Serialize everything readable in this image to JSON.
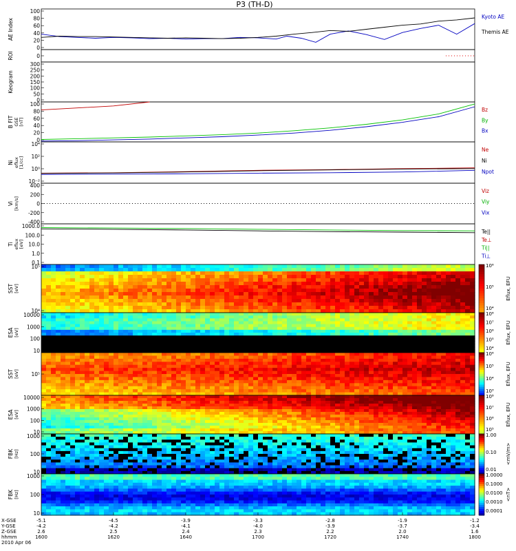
{
  "title": "P3 (TH-D)",
  "chart_data": {
    "type": "multi-panel",
    "title": "P3 (TH-D)",
    "xaxis": {
      "tick_columns": [
        "1600",
        "1620",
        "1640",
        "1700",
        "1720",
        "1740",
        "1800"
      ],
      "rows": [
        {
          "label": "X-GSE",
          "ticks": [
            "-5.1",
            "-4.5",
            "-3.9",
            "-3.3",
            "-2.8",
            "-1.9",
            "-1.2"
          ]
        },
        {
          "label": "Y-GSE",
          "ticks": [
            "-4.2",
            "-4.2",
            "-4.1",
            "-4.0",
            "-3.9",
            "-3.7",
            "-3.4"
          ]
        },
        {
          "label": "Z-GSE",
          "ticks": [
            "2.6",
            "2.5",
            "2.4",
            "2.3",
            "2.2",
            "2.0",
            "1.6"
          ]
        },
        {
          "label": "hhmm",
          "ticks": [
            "1600",
            "1620",
            "1640",
            "1700",
            "1720",
            "1740",
            "1800"
          ]
        }
      ],
      "date": "2010 Apr 06"
    },
    "panels": [
      {
        "id": "ae",
        "type": "line",
        "ylabel": "AE Index",
        "ylim": [
          0,
          100
        ],
        "yticks": [
          "0",
          "20",
          "40",
          "60",
          "80",
          "100"
        ],
        "legend": [
          {
            "name": "Kyoto AE",
            "color": "#0000c0"
          },
          {
            "name": "Themis AE",
            "color": "#000000"
          }
        ],
        "series": [
          {
            "name": "Kyoto AE",
            "color": "#0000c0",
            "x": [
              1600,
              1605,
              1610,
              1615,
              1620,
              1625,
              1630,
              1635,
              1640,
              1645,
              1650,
              1655,
              1700,
              1705,
              1708,
              1712,
              1716,
              1720,
              1725,
              1730,
              1735,
              1740,
              1745,
              1750,
              1755,
              1800
            ],
            "y": [
              38,
              32,
              30,
              28,
              30,
              29,
              27,
              28,
              26,
              27,
              27,
              30,
              29,
              26,
              33,
              28,
              18,
              38,
              46,
              37,
              25,
              42,
              52,
              60,
              38,
              64
            ]
          },
          {
            "name": "Themis AE",
            "color": "#000000",
            "x": [
              1600,
              1605,
              1610,
              1615,
              1620,
              1625,
              1630,
              1635,
              1640,
              1645,
              1650,
              1655,
              1700,
              1705,
              1710,
              1715,
              1720,
              1725,
              1730,
              1735,
              1740,
              1745,
              1750,
              1755,
              1800
            ],
            "y": [
              30,
              33,
              32,
              32,
              31,
              30,
              29,
              28,
              29,
              28,
              27,
              28,
              30,
              33,
              38,
              42,
              47,
              45,
              50,
              55,
              60,
              63,
              70,
              73,
              78
            ]
          }
        ]
      },
      {
        "id": "roi",
        "type": "line",
        "ylabel": "ROI",
        "yticks": [
          "0"
        ],
        "series": [
          {
            "name": "ROI",
            "color": "#e00000",
            "x": [
              1752,
              1800
            ],
            "y": [
              0,
              0
            ],
            "dotted": true
          }
        ]
      },
      {
        "id": "keogram",
        "type": "line",
        "ylabel": "Keogram",
        "ylim": [
          0,
          300
        ],
        "yticks": [
          "0",
          "50",
          "100",
          "150",
          "200",
          "250",
          "300"
        ],
        "series": []
      },
      {
        "id": "bfit",
        "type": "line",
        "ylabel": "B FIT",
        "ysub": [
          "GSE",
          "[nT]"
        ],
        "ylim": [
          0,
          100
        ],
        "yticks": [
          "0",
          "20",
          "40",
          "60",
          "80",
          "100"
        ],
        "legend": [
          {
            "name": "Bz",
            "color": "#c00000"
          },
          {
            "name": "By",
            "color": "#00b000"
          },
          {
            "name": "Bx",
            "color": "#0000c0"
          }
        ],
        "series": [
          {
            "name": "Bz",
            "color": "#c00000",
            "x": [
              1600,
              1610,
              1620,
              1630
            ],
            "y": [
              80,
              85,
              90,
              100
            ]
          },
          {
            "name": "By",
            "color": "#00c000",
            "x": [
              1600,
              1610,
              1620,
              1630,
              1640,
              1650,
              1700,
              1710,
              1720,
              1730,
              1740,
              1750,
              1800
            ],
            "y": [
              6,
              8,
              10,
              12,
              15,
              18,
              22,
              28,
              35,
              44,
              55,
              70,
              95
            ]
          },
          {
            "name": "Bx",
            "color": "#0000c0",
            "x": [
              1600,
              1610,
              1620,
              1630,
              1640,
              1650,
              1700,
              1710,
              1720,
              1730,
              1740,
              1750,
              1800
            ],
            "y": [
              2,
              3,
              5,
              7,
              10,
              13,
              17,
              22,
              29,
              38,
              49,
              63,
              88
            ]
          }
        ]
      },
      {
        "id": "density",
        "type": "line",
        "ylabel": "Ni",
        "ysub": [
          "eflux",
          "[1/cc]"
        ],
        "yscale": "log",
        "ylim": [
          0.01,
          100000
        ],
        "yticks": [
          "10⁻²",
          "10⁰",
          "10²",
          "10⁴"
        ],
        "legend": [
          {
            "name": "Ne",
            "color": "#c00000"
          },
          {
            "name": "Ni",
            "color": "#000000"
          },
          {
            "name": "Npot",
            "color": "#0000c0"
          }
        ],
        "series": [
          {
            "name": "Ne",
            "color": "#c00000",
            "x": [
              1600,
              1620,
              1640,
              1700,
              1720,
              1740,
              1800
            ],
            "y": [
              0.5,
              0.6,
              0.9,
              1.5,
              2,
              3,
              4
            ]
          },
          {
            "name": "Ni",
            "color": "#000000",
            "x": [
              1600,
              1620,
              1640,
              1700,
              1720,
              1740,
              1800
            ],
            "y": [
              0.45,
              0.55,
              0.8,
              1.3,
              1.8,
              2.5,
              3
            ]
          },
          {
            "name": "Npot",
            "color": "#0000c0",
            "x": [
              1600,
              1620,
              1640,
              1700,
              1720,
              1740,
              1800
            ],
            "y": [
              0.3,
              0.35,
              0.4,
              0.5,
              0.6,
              0.8,
              1.5
            ]
          }
        ]
      },
      {
        "id": "velocity",
        "type": "line",
        "ylabel": "Vi",
        "ysub": [
          "[km/s]"
        ],
        "ylim": [
          -500,
          500
        ],
        "yticks": [
          "-400",
          "-200",
          "0",
          "200",
          "400"
        ],
        "legend": [
          {
            "name": "Viz",
            "color": "#c00000"
          },
          {
            "name": "Viy",
            "color": "#00b000"
          },
          {
            "name": "Vix",
            "color": "#0000c0"
          }
        ],
        "series": [
          {
            "name": "zero",
            "color": "#000000",
            "x": [
              1600,
              1800
            ],
            "y": [
              0,
              0
            ],
            "dotted": true
          }
        ]
      },
      {
        "id": "temperature",
        "type": "line",
        "ylabel": "Ti",
        "ysub": [
          "eflux",
          "[eV]"
        ],
        "yscale": "log",
        "ylim": [
          0.05,
          8000
        ],
        "yticks": [
          "0.1",
          "1.0",
          "10.0",
          "100.0",
          "1000.0"
        ],
        "legend": [
          {
            "name": "Te||",
            "color": "#000000"
          },
          {
            "name": "Te⊥",
            "color": "#c00000"
          },
          {
            "name": "Ti||",
            "color": "#00b000"
          },
          {
            "name": "Ti⊥",
            "color": "#0000c0"
          }
        ],
        "series": [
          {
            "name": "Ti||",
            "color": "#00c000",
            "x": [
              1600,
              1620,
              1640,
              1700,
              1720,
              1740,
              1800
            ],
            "y": [
              2600,
              2300,
              2000,
              1600,
              1300,
              1100,
              1000
            ]
          },
          {
            "name": "Te||",
            "color": "#000000",
            "x": [
              1600,
              1620,
              1640,
              1700,
              1720,
              1740,
              1800
            ],
            "y": [
              1800,
              1600,
              1300,
              1000,
              800,
              700,
              600
            ]
          }
        ]
      },
      {
        "id": "sst_i",
        "type": "heatmap",
        "ylabel": "SST",
        "ysub": [
          "[eV]"
        ],
        "yticks": [
          "10⁴",
          "10⁵"
        ],
        "colorbar": {
          "label": "Eflux, EFU",
          "ticks": [
            "10⁴",
            "10⁵",
            "10⁶"
          ]
        }
      },
      {
        "id": "esa_i",
        "type": "heatmap",
        "ylabel": "ESA",
        "ysub": [
          "[eV]"
        ],
        "yticks": [
          "10",
          "100",
          "1000",
          "10000"
        ],
        "colorbar": {
          "label": "Eflux, EFU",
          "ticks": [
            "10⁴",
            "10⁵",
            "10⁶",
            "10⁷",
            "10⁸"
          ]
        }
      },
      {
        "id": "sst_e",
        "type": "heatmap",
        "ylabel": "SST",
        "ysub": [
          "[eV]"
        ],
        "yticks": [
          "10⁵"
        ],
        "colorbar": {
          "label": "Eflux, EFU",
          "ticks": [
            "10³",
            "10⁴",
            "10⁵",
            "10⁶"
          ]
        }
      },
      {
        "id": "esa_e",
        "type": "heatmap",
        "ylabel": "ESA",
        "ysub": [
          "[eV]"
        ],
        "yticks": [
          "10",
          "100",
          "1000",
          "10000"
        ],
        "colorbar": {
          "label": "Eflux, EFU",
          "ticks": [
            "10⁵",
            "10⁶",
            "10⁷",
            "10⁸"
          ]
        }
      },
      {
        "id": "fbk_e",
        "type": "heatmap",
        "ylabel": "FBK",
        "ysub": [
          "[Hz]"
        ],
        "yticks": [
          "10",
          "100",
          "1000"
        ],
        "colorbar": {
          "label": "<mV/m>",
          "ticks": [
            "0.01",
            "0.10",
            "1.00"
          ]
        }
      },
      {
        "id": "fbk_b",
        "type": "heatmap",
        "ylabel": "FBK",
        "ysub": [
          "[Hz]"
        ],
        "yticks": [
          "10",
          "100",
          "1000"
        ],
        "colorbar": {
          "label": "<nT>",
          "ticks": [
            "0.0001",
            "0.0010",
            "0.0100",
            "0.1000",
            "1.0000"
          ]
        }
      }
    ]
  }
}
